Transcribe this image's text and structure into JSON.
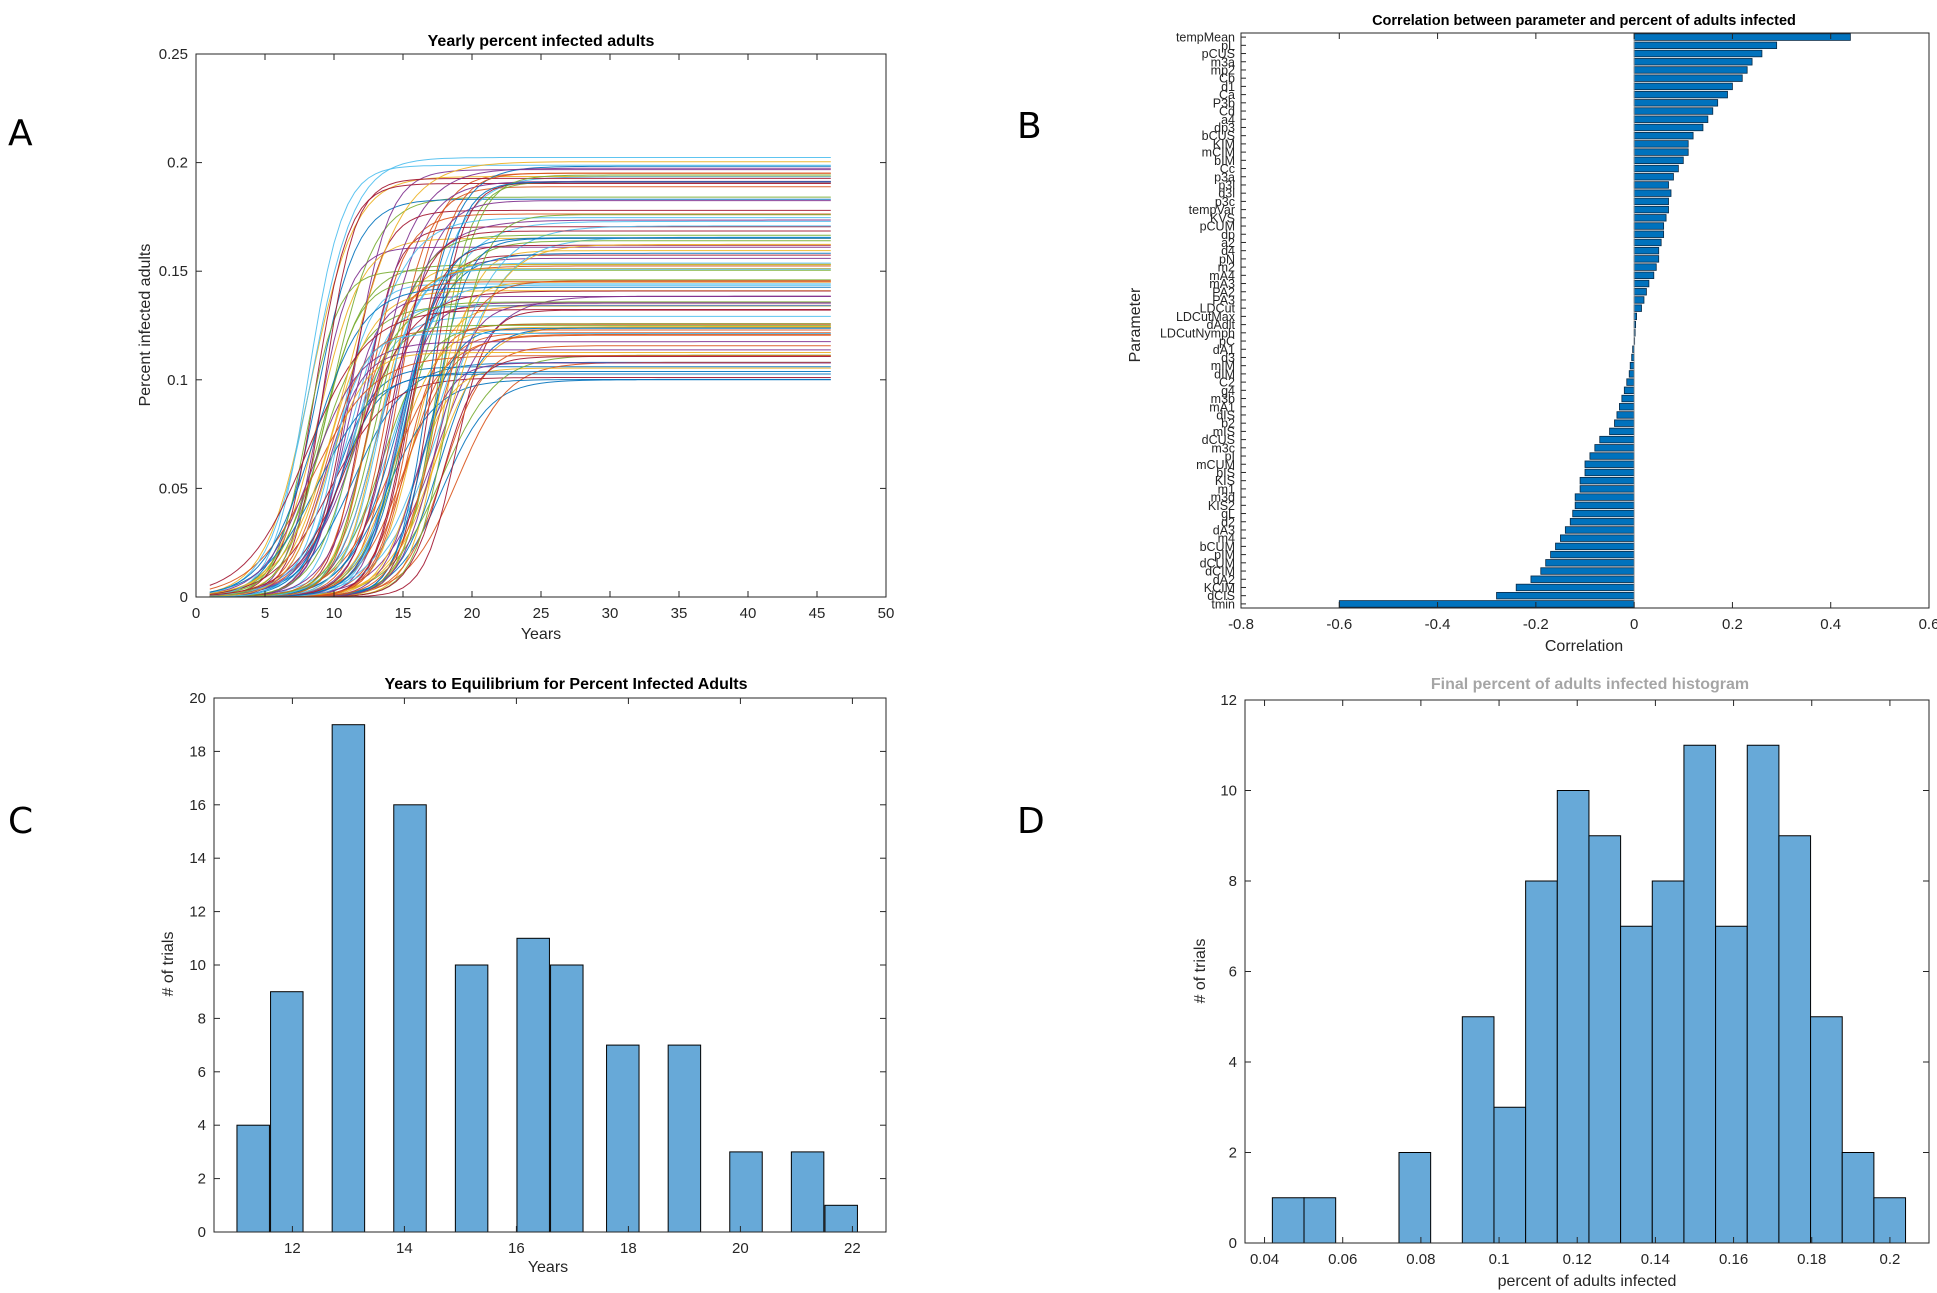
{
  "panels": [
    "A",
    "B",
    "C",
    "D"
  ],
  "chart_data": [
    {
      "id": "A",
      "type": "line",
      "title": "Yearly percent infected adults",
      "xlabel": "Years",
      "ylabel": "Percent infected adults",
      "xlim": [
        0,
        50
      ],
      "ylim": [
        0,
        0.25
      ],
      "xticks": [
        "0",
        "5",
        "10",
        "15",
        "20",
        "25",
        "30",
        "35",
        "40",
        "45",
        "50"
      ],
      "yticks": [
        "0",
        "0.05",
        "0.1",
        "0.15",
        "0.2",
        "0.25"
      ],
      "x_range": [
        1,
        46
      ],
      "series_count": 100,
      "plateau_range": [
        0.1,
        0.203
      ],
      "midpoint_year_range": [
        8,
        19
      ],
      "colors": [
        "#0072BD",
        "#D95319",
        "#EDB120",
        "#7E2F8E",
        "#77AC30",
        "#4DBEEE",
        "#A2142F"
      ]
    },
    {
      "id": "B",
      "type": "bar",
      "orientation": "horizontal",
      "title": "Correlation between parameter and percent of adults infected",
      "xlabel": "Correlation",
      "ylabel": "Parameter",
      "xlim": [
        -0.8,
        0.6
      ],
      "xticks": [
        "-0.8",
        "-0.6",
        "-0.4",
        "-0.2",
        "0",
        "0.2",
        "0.4",
        "0.6"
      ],
      "categories": [
        "tempMean",
        "pL",
        "pCUS",
        "m3a",
        "mp2",
        "Cb",
        "d1",
        "Ca",
        "P3b",
        "Cd",
        "a4",
        "dp3",
        "bCUS",
        "KIM",
        "mCIM",
        "bIM",
        "Cc",
        "p3a",
        "p3l",
        "d3l",
        "p3c",
        "tempVar",
        "KVS",
        "pCUM",
        "dp",
        "a2",
        "d4",
        "pN",
        "m2",
        "mA4",
        "mA3",
        "PA2",
        "PA3",
        "LDCut",
        "LDCutMax",
        "dAdlt",
        "LDCutNymph",
        "pC",
        "dA1",
        "d3",
        "mIM",
        "dIM",
        "C2",
        "g4",
        "m3b",
        "mA1",
        "dIS",
        "b2",
        "mIS",
        "dCUS",
        "m3c",
        "pI",
        "mCUM",
        "bIS",
        "KIS",
        "m1",
        "m3d",
        "KIS2",
        "gL",
        "d2",
        "dA3",
        "m4",
        "bCUM",
        "pIM",
        "dCUM",
        "dCIM",
        "dA2",
        "KCIM",
        "dCIS",
        "tmin"
      ],
      "values": [
        0.44,
        0.29,
        0.26,
        0.24,
        0.23,
        0.22,
        0.2,
        0.19,
        0.17,
        0.16,
        0.15,
        0.14,
        0.12,
        0.11,
        0.11,
        0.1,
        0.09,
        0.08,
        0.07,
        0.075,
        0.07,
        0.07,
        0.065,
        0.06,
        0.06,
        0.055,
        0.05,
        0.05,
        0.045,
        0.04,
        0.03,
        0.025,
        0.02,
        0.015,
        0.005,
        0.003,
        0.002,
        0.001,
        -0.003,
        -0.005,
        -0.008,
        -0.01,
        -0.015,
        -0.02,
        -0.025,
        -0.03,
        -0.035,
        -0.04,
        -0.05,
        -0.07,
        -0.08,
        -0.09,
        -0.1,
        -0.1,
        -0.11,
        -0.11,
        -0.12,
        -0.12,
        -0.125,
        -0.13,
        -0.14,
        -0.15,
        -0.16,
        -0.17,
        -0.18,
        -0.19,
        -0.21,
        -0.24,
        -0.28,
        -0.6
      ],
      "color": "#0072BD"
    },
    {
      "id": "C",
      "type": "bar",
      "title": "Years to Equilibrium for Percent Infected Adults",
      "xlabel": "Years",
      "ylabel": "# of trials",
      "xlim": [
        10.6,
        22.6
      ],
      "ylim": [
        0,
        20
      ],
      "xticks": [
        "12",
        "14",
        "16",
        "18",
        "20",
        "22"
      ],
      "yticks": [
        "0",
        "2",
        "4",
        "6",
        "8",
        "10",
        "12",
        "14",
        "16",
        "18",
        "20"
      ],
      "bin_centers": [
        11.3,
        11.9,
        13.0,
        14.1,
        15.2,
        16.3,
        16.9,
        17.9,
        19.0,
        20.1,
        21.2,
        21.8
      ],
      "values": [
        4,
        9,
        19,
        16,
        10,
        11,
        10,
        7,
        7,
        3,
        3,
        1
      ],
      "bin_width": 0.58,
      "color": "#67A9D8"
    },
    {
      "id": "D",
      "type": "bar",
      "title": "Final percent of adults infected histogram",
      "xlabel": "percent of adults infected",
      "ylabel": "# of trials",
      "xlim": [
        0.035,
        0.21
      ],
      "ylim": [
        0,
        12
      ],
      "xticks": [
        "0.04",
        "0.06",
        "0.08",
        "0.1",
        "0.12",
        "0.14",
        "0.16",
        "0.18",
        "0.2"
      ],
      "yticks": [
        "0",
        "2",
        "4",
        "6",
        "8",
        "10",
        "12"
      ],
      "bin_edges_start": 0.042,
      "bin_width": 0.0081,
      "values": [
        1,
        1,
        0,
        0,
        2,
        0,
        5,
        3,
        8,
        10,
        9,
        7,
        8,
        11,
        7,
        11,
        9,
        5,
        2,
        1
      ],
      "color": "#67A9D8"
    }
  ]
}
